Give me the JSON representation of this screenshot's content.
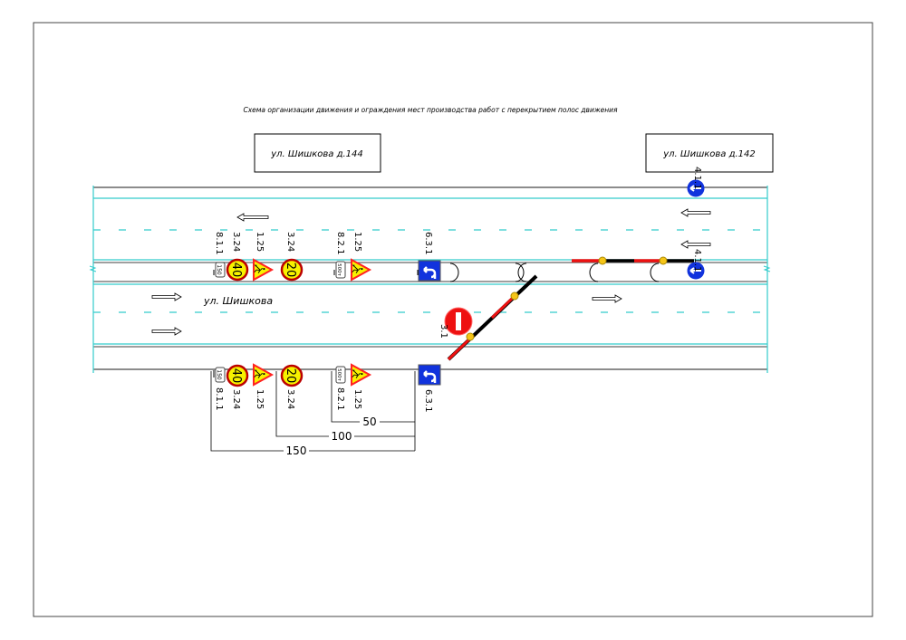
{
  "title": "Схема организации движения и ограждения мест производства работ с перекрытием полос движения",
  "address_left": "ул. Шишкова д.144",
  "address_right": "ул. Шишкова д.142",
  "street_name": "ул. Шишкова",
  "colors": {
    "lane_line": "#33cccc",
    "curb": "#555555",
    "barrier_red": "#ee1111",
    "lamp": "#f5c518",
    "blue_sign": "#1133dd"
  },
  "top_signs": {
    "plate_150": "150",
    "speed_40": "40",
    "speed_20": "20",
    "plate_500": "500т",
    "label_811": "8.1.1",
    "label_324a": "3.24",
    "label_125a": "1.25",
    "label_324b": "3.24",
    "label_821": "8.2.1",
    "label_125b": "1.25",
    "label_631": "6.3.1"
  },
  "bottom_signs": {
    "plate_150": "150",
    "speed_40": "40",
    "speed_20": "20",
    "plate_500": "500т",
    "label_811": "8.1.1",
    "label_324a": "3.24",
    "label_125a": "1.25",
    "label_324b": "3.24",
    "label_821": "8.2.1",
    "label_125b": "1.25",
    "label_631": "6.3.1"
  },
  "no_entry_label": "3.1",
  "direction_sign_label_1": "4.1.1",
  "direction_sign_label_2": "4.1.1",
  "dimensions": {
    "d50": "50",
    "d100": "100",
    "d150": "150"
  }
}
